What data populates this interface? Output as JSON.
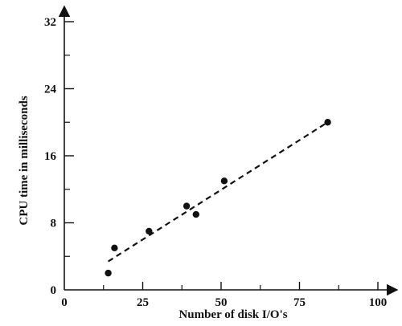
{
  "chart_data": {
    "type": "scatter",
    "title": "",
    "xlabel": "Number of disk I/O's",
    "ylabel": "CPU time in milliseconds",
    "xlim": [
      0,
      100
    ],
    "ylim": [
      0,
      32
    ],
    "x_ticks": [
      0,
      25,
      50,
      75,
      100
    ],
    "y_ticks": [
      0,
      8,
      16,
      24,
      32
    ],
    "x_ticks_labels": [
      "0",
      "25",
      "50",
      "75",
      "100"
    ],
    "y_ticks_labels": [
      "0",
      "8",
      "16",
      "24",
      "32"
    ],
    "grid": false,
    "series": [
      {
        "points": [
          {
            "x": 14,
            "y": 2
          },
          {
            "x": 16,
            "y": 5
          },
          {
            "x": 27,
            "y": 7
          },
          {
            "x": 39,
            "y": 10
          },
          {
            "x": 42,
            "y": 9
          },
          {
            "x": 51,
            "y": 13
          },
          {
            "x": 84,
            "y": 20
          }
        ]
      }
    ],
    "trendline": {
      "style": "dashed",
      "from": {
        "x": 14,
        "y": 3.4
      },
      "to": {
        "x": 84,
        "y": 20
      }
    }
  }
}
